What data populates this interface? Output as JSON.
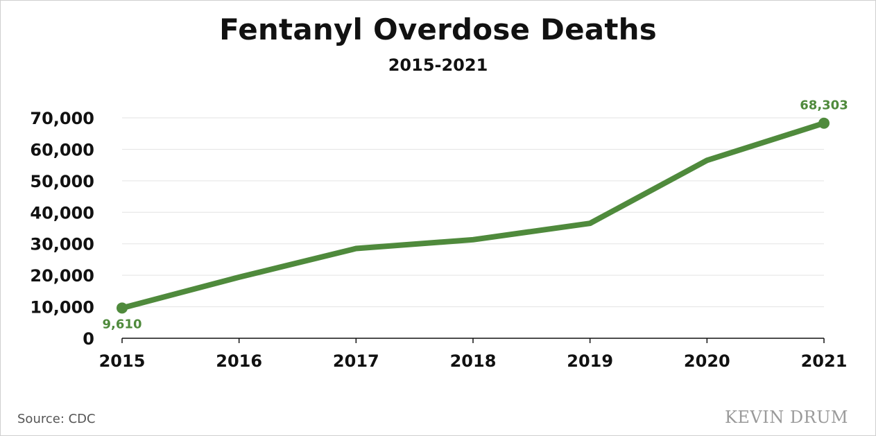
{
  "title": "Fentanyl Overdose Deaths",
  "subtitle": "2015-2021",
  "source": "Source:  CDC",
  "watermark": "KEVIN DRUM",
  "colors": {
    "line": "#4f8a3c",
    "label": "#4f8a3c",
    "grid": "#e3e3e3",
    "axis": "#111111"
  },
  "chart_data": {
    "type": "line",
    "title": "Fentanyl Overdose Deaths",
    "subtitle": "2015-2021",
    "xlabel": "",
    "ylabel": "",
    "categories": [
      "2015",
      "2016",
      "2017",
      "2018",
      "2019",
      "2020",
      "2021"
    ],
    "series": [
      {
        "values": [
          9610,
          19400,
          28500,
          31300,
          36500,
          56500,
          68303
        ]
      }
    ],
    "ylim": [
      0,
      70000
    ],
    "yticks": [
      0,
      10000,
      20000,
      30000,
      40000,
      50000,
      60000,
      70000
    ],
    "ytick_labels": [
      "0",
      "10,000",
      "20,000",
      "30,000",
      "40,000",
      "50,000",
      "60,000",
      "70,000"
    ],
    "data_labels": [
      {
        "index": 0,
        "text": "9,610"
      },
      {
        "index": 6,
        "text": "68,303"
      }
    ],
    "endpoint_markers": true,
    "grid": "horizontal",
    "legend": "none"
  }
}
